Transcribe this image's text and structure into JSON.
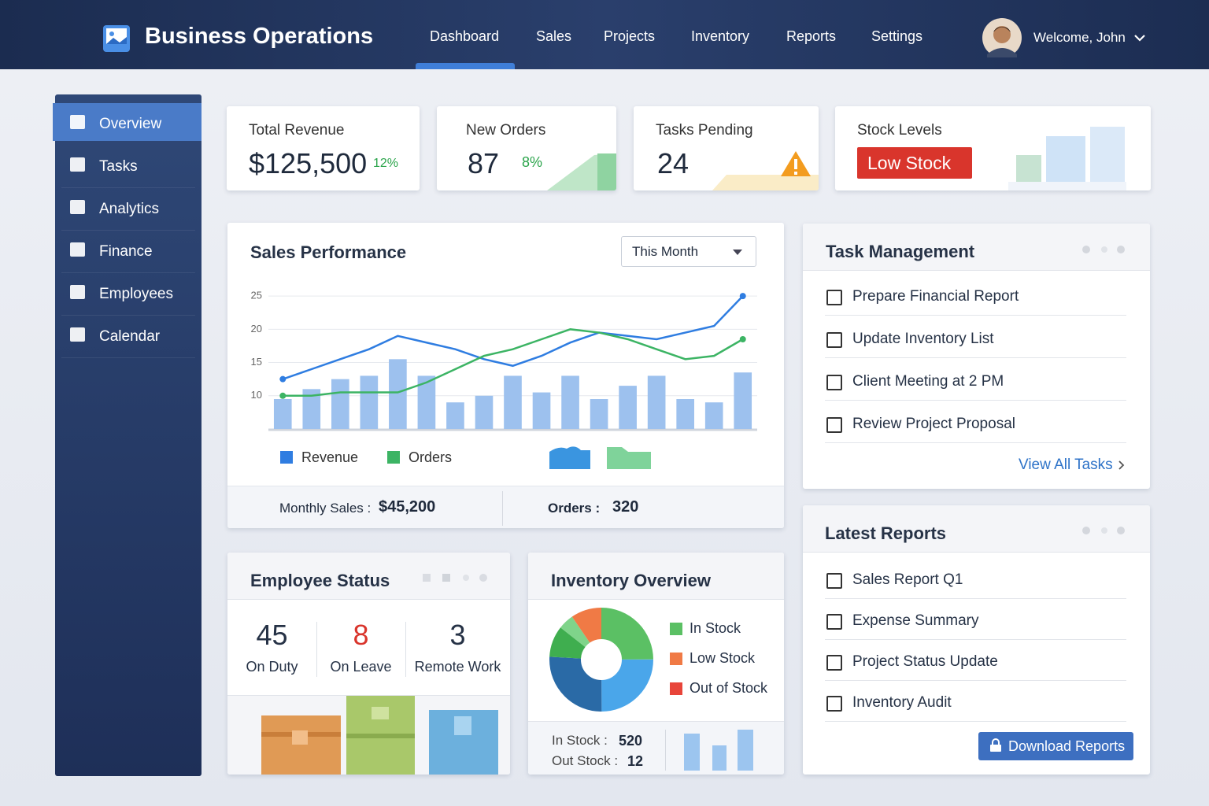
{
  "header": {
    "brand": "Business Operations",
    "nav": [
      "Dashboard",
      "Sales",
      "Projects",
      "Inventory",
      "Reports",
      "Settings"
    ],
    "user": "Welcome, John"
  },
  "sidebar": [
    "Overview",
    "Tasks",
    "Analytics",
    "Finance",
    "Employees",
    "Calendar"
  ],
  "kpis": [
    {
      "title": "Total Revenue",
      "value": "$125,500",
      "change": "12%"
    },
    {
      "title": "New Orders",
      "value": 87,
      "change": "8%"
    },
    {
      "title": "Tasks Pending",
      "value": 24
    },
    {
      "title": "Stock Levels",
      "value": "Low Stock"
    }
  ],
  "sales": {
    "dropdown": "This Month",
    "summary": [
      {
        "label": "Monthly Sales :",
        "value": "$45,200"
      },
      {
        "label": "Orders :",
        "value": 320
      }
    ]
  },
  "chart_data": {
    "type": "combo",
    "title": "Sales Performance",
    "categories": [
      null,
      null,
      null,
      null,
      null,
      null,
      null,
      null,
      null,
      null,
      null,
      null,
      null,
      null,
      null,
      null,
      null
    ],
    "series": [
      {
        "name": "Revenue",
        "type": "line",
        "color": "#2f7de1",
        "values": [
          12.5,
          14,
          15.5,
          17,
          19,
          18,
          17,
          15.5,
          14.5,
          16,
          18,
          19.5,
          19,
          18.5,
          19.5,
          20.5,
          25
        ]
      },
      {
        "name": "Orders",
        "type": "line",
        "color": "#3cb464",
        "values": [
          10,
          10,
          10.5,
          10.5,
          10.5,
          12,
          14,
          16,
          17,
          18.5,
          20,
          19.5,
          18.5,
          17,
          15.5,
          16,
          18.5
        ]
      },
      {
        "type": "bar",
        "color": "#9dc1ee",
        "values": [
          9.5,
          11,
          12.5,
          13,
          15.5,
          13,
          9,
          10,
          13,
          10.5,
          13,
          9.5,
          11.5,
          13,
          9.5,
          9,
          13.5
        ]
      }
    ],
    "ylim": [
      5,
      27.5
    ],
    "yticks": [
      10,
      15,
      20,
      25
    ],
    "grid": true
  },
  "employee_status": {
    "title": "Employee Status",
    "stats": [
      {
        "value": 45,
        "label": "On Duty"
      },
      {
        "value": 8,
        "label": "On Leave"
      },
      {
        "value": 3,
        "label": "Remote Work"
      }
    ]
  },
  "inventory": {
    "title": "Inventory Overview",
    "legend": [
      "In Stock",
      "Low Stock",
      "Out of Stock"
    ],
    "summary": [
      {
        "label": "In Stock :",
        "value": 520
      },
      {
        "label": "Out Stock :",
        "value": 12
      }
    ]
  },
  "tasks": {
    "title": "Task Management",
    "items": [
      "Prepare Financial Report",
      "Update Inventory List",
      "Client Meeting at 2 PM",
      "Review Project Proposal"
    ],
    "link": "View All Tasks"
  },
  "reports": {
    "title": "Latest Reports",
    "items": [
      "Sales Report Q1",
      "Expense Summary",
      "Project Status Update",
      "Inventory Audit"
    ],
    "button": "Download Reports"
  }
}
